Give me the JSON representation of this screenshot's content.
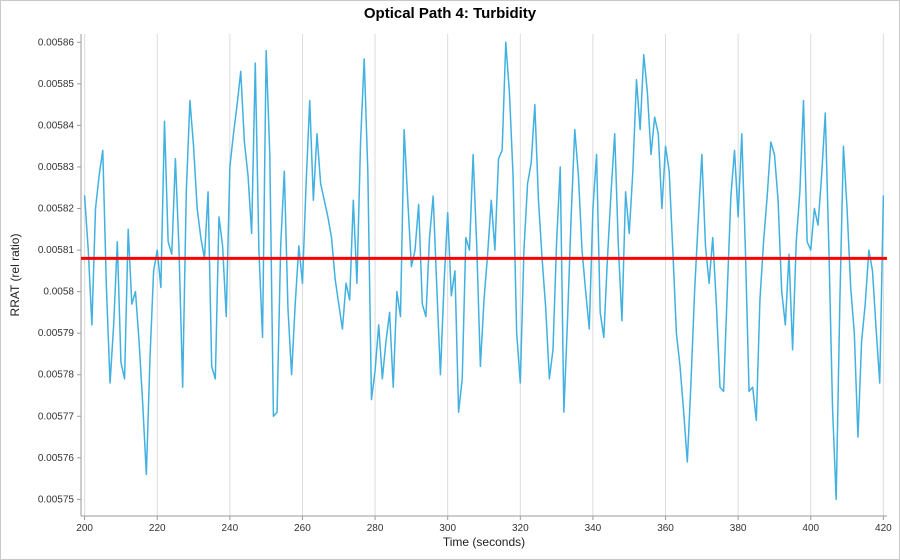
{
  "title": "Optical Path 4: Turbidity",
  "chart_data": {
    "type": "line",
    "title": "Optical Path 4: Turbidity",
    "xlabel": "Time (seconds)",
    "ylabel": "RRAT (rel ratio)",
    "xlim": [
      199,
      421
    ],
    "ylim": [
      0.005746,
      0.005862
    ],
    "x_ticks": [
      200,
      220,
      240,
      260,
      280,
      300,
      320,
      340,
      360,
      380,
      400,
      420
    ],
    "y_ticks": [
      0.00575,
      0.00576,
      0.00577,
      0.00578,
      0.00579,
      0.0058,
      0.00581,
      0.00582,
      0.00583,
      0.00584,
      0.00585,
      0.00586
    ],
    "y_tick_labels": [
      "0.00575",
      "0.00576",
      "0.00577",
      "0.00578",
      "0.00579",
      "0.0058",
      "0.00581",
      "0.00582",
      "0.00583",
      "0.00584",
      "0.00585",
      "0.00586"
    ],
    "grid": "vertical-only",
    "legend": "none",
    "colors": {
      "line": "#41b1e1",
      "reference": "#ff0000",
      "grid": "#dcdcdc",
      "spine": "#9b9b9b",
      "text": "#333333"
    },
    "reference_line": {
      "name": "mean",
      "value": 0.005808
    },
    "series": [
      {
        "name": "RRAT",
        "x_start": 200,
        "x_step": 1,
        "y": [
          0.005823,
          0.00581,
          0.005792,
          0.00582,
          0.005828,
          0.005834,
          0.005801,
          0.005778,
          0.005792,
          0.005812,
          0.005783,
          0.005779,
          0.005815,
          0.005797,
          0.0058,
          0.005788,
          0.005773,
          0.005756,
          0.005784,
          0.005805,
          0.00581,
          0.005801,
          0.005841,
          0.005812,
          0.005809,
          0.005832,
          0.00581,
          0.005777,
          0.005824,
          0.005846,
          0.005835,
          0.00582,
          0.005813,
          0.005808,
          0.005824,
          0.005782,
          0.005779,
          0.005818,
          0.005811,
          0.005794,
          0.00583,
          0.005838,
          0.005845,
          0.005853,
          0.005836,
          0.005828,
          0.005814,
          0.005855,
          0.00581,
          0.005789,
          0.005858,
          0.005833,
          0.00577,
          0.005771,
          0.005811,
          0.005829,
          0.005796,
          0.00578,
          0.005797,
          0.005811,
          0.005802,
          0.005826,
          0.005846,
          0.005822,
          0.005838,
          0.005826,
          0.005822,
          0.005818,
          0.005813,
          0.005803,
          0.005797,
          0.005791,
          0.005802,
          0.005798,
          0.005822,
          0.005802,
          0.005836,
          0.005856,
          0.005829,
          0.005774,
          0.005781,
          0.005792,
          0.005779,
          0.005788,
          0.005795,
          0.005777,
          0.0058,
          0.005794,
          0.005839,
          0.005822,
          0.005806,
          0.00581,
          0.005821,
          0.005797,
          0.005794,
          0.005813,
          0.005823,
          0.005801,
          0.00578,
          0.005802,
          0.005819,
          0.005799,
          0.005805,
          0.005771,
          0.005779,
          0.005813,
          0.00581,
          0.005833,
          0.005811,
          0.005782,
          0.005798,
          0.005809,
          0.005822,
          0.00581,
          0.005832,
          0.005834,
          0.00586,
          0.005848,
          0.005828,
          0.00579,
          0.005778,
          0.00581,
          0.005826,
          0.005831,
          0.005845,
          0.005822,
          0.005808,
          0.005796,
          0.005779,
          0.005786,
          0.005812,
          0.00583,
          0.005771,
          0.005793,
          0.005818,
          0.005839,
          0.005828,
          0.00581,
          0.0058,
          0.005791,
          0.00582,
          0.005833,
          0.005795,
          0.005789,
          0.005808,
          0.005824,
          0.005838,
          0.005811,
          0.005793,
          0.005824,
          0.005814,
          0.005829,
          0.005851,
          0.005839,
          0.005857,
          0.005848,
          0.005833,
          0.005842,
          0.005838,
          0.00582,
          0.005835,
          0.005829,
          0.00581,
          0.00579,
          0.005782,
          0.005771,
          0.005759,
          0.005778,
          0.0058,
          0.005817,
          0.005833,
          0.005811,
          0.005802,
          0.005813,
          0.005797,
          0.005777,
          0.005776,
          0.0058,
          0.005823,
          0.005834,
          0.005818,
          0.005838,
          0.00581,
          0.005776,
          0.005777,
          0.005769,
          0.005798,
          0.005812,
          0.005823,
          0.005836,
          0.005833,
          0.005822,
          0.0058,
          0.005792,
          0.005809,
          0.005786,
          0.005812,
          0.005824,
          0.005846,
          0.005812,
          0.00581,
          0.00582,
          0.005816,
          0.005828,
          0.005843,
          0.00581,
          0.005772,
          0.00575,
          0.005797,
          0.005835,
          0.00582,
          0.005801,
          0.00579,
          0.005765,
          0.005788,
          0.005797,
          0.00581,
          0.005805,
          0.005791,
          0.005778,
          0.005823
        ]
      }
    ]
  }
}
